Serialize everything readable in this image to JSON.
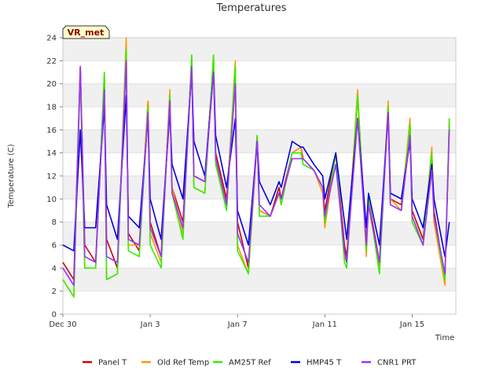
{
  "chart_data": {
    "type": "line",
    "title": "Temperatures",
    "xlabel": "Time",
    "ylabel": "Temperature (C)",
    "ylim": [
      0,
      24
    ],
    "xlim_days": [
      0,
      18
    ],
    "y_ticks": [
      0,
      2,
      4,
      6,
      8,
      10,
      12,
      14,
      16,
      18,
      20,
      22,
      24
    ],
    "x_ticks": [
      {
        "day": 0,
        "label": "Dec 30"
      },
      {
        "day": 4,
        "label": "Jan 3"
      },
      {
        "day": 8,
        "label": "Jan 7"
      },
      {
        "day": 12,
        "label": "Jan 11"
      },
      {
        "day": 16,
        "label": "Jan 15"
      }
    ],
    "x": [
      0.0,
      0.5,
      0.8,
      1.0,
      1.5,
      1.9,
      2.0,
      2.5,
      2.9,
      3.0,
      3.5,
      3.9,
      4.0,
      4.5,
      4.9,
      5.0,
      5.5,
      5.9,
      6.0,
      6.5,
      6.9,
      7.0,
      7.5,
      7.9,
      8.0,
      8.5,
      8.9,
      9.0,
      9.5,
      9.9,
      10.0,
      10.5,
      10.9,
      11.0,
      11.5,
      11.9,
      12.0,
      12.5,
      12.9,
      13.0,
      13.5,
      13.9,
      14.0,
      14.5,
      14.9,
      15.0,
      15.5,
      15.9,
      16.0,
      16.5,
      16.9,
      17.0,
      17.5,
      17.7
    ],
    "series": [
      {
        "name": "Panel T",
        "color": "#cc0000",
        "values": [
          4.5,
          3.0,
          21.5,
          6.0,
          4.5,
          20.5,
          6.5,
          4.0,
          22.5,
          7.0,
          5.5,
          18.5,
          8.0,
          5.0,
          19.0,
          11.0,
          8.0,
          22.0,
          12.0,
          11.5,
          22.0,
          14.0,
          10.0,
          21.0,
          8.0,
          4.0,
          15.5,
          9.0,
          8.5,
          11.0,
          10.0,
          14.0,
          14.5,
          13.5,
          12.5,
          11.0,
          9.0,
          14.0,
          6.0,
          5.0,
          19.0,
          6.0,
          10.0,
          4.5,
          18.0,
          10.0,
          9.5,
          16.5,
          9.0,
          6.5,
          14.0,
          9.0,
          3.0,
          16.5
        ]
      },
      {
        "name": "Old Ref Temp",
        "color": "#ff9900",
        "values": [
          3.0,
          1.5,
          21.0,
          4.0,
          4.0,
          21.0,
          3.0,
          3.5,
          24.0,
          6.0,
          6.0,
          18.5,
          7.0,
          4.5,
          19.5,
          11.0,
          7.0,
          22.5,
          11.0,
          10.5,
          22.5,
          13.5,
          9.5,
          22.0,
          6.0,
          3.5,
          15.0,
          9.0,
          8.5,
          10.5,
          9.5,
          14.0,
          14.5,
          13.0,
          12.5,
          10.5,
          7.5,
          14.0,
          5.0,
          4.5,
          19.5,
          5.0,
          9.5,
          4.0,
          18.5,
          10.0,
          9.0,
          17.0,
          8.0,
          6.0,
          14.5,
          8.0,
          2.5,
          17.0
        ]
      },
      {
        "name": "AM25T Ref",
        "color": "#33ee00",
        "values": [
          3.0,
          1.5,
          21.0,
          4.0,
          4.0,
          21.0,
          3.0,
          3.5,
          23.0,
          5.5,
          5.0,
          18.0,
          6.0,
          4.0,
          19.0,
          10.5,
          6.5,
          22.5,
          11.0,
          10.5,
          22.5,
          13.0,
          9.0,
          21.5,
          5.5,
          3.5,
          15.5,
          8.5,
          8.5,
          10.5,
          9.5,
          14.0,
          14.0,
          13.0,
          12.5,
          11.0,
          8.0,
          14.0,
          4.5,
          4.0,
          19.0,
          5.5,
          10.0,
          3.5,
          18.0,
          9.5,
          9.0,
          16.5,
          8.0,
          6.0,
          14.0,
          8.5,
          3.0,
          17.0
        ]
      },
      {
        "name": "HMP45 T",
        "color": "#0000dd",
        "values": [
          6.0,
          5.5,
          16.0,
          7.5,
          7.5,
          18.0,
          9.5,
          6.5,
          19.0,
          8.5,
          7.5,
          17.0,
          10.0,
          6.5,
          17.5,
          13.0,
          10.0,
          21.0,
          15.0,
          12.0,
          21.0,
          15.5,
          11.0,
          17.0,
          9.0,
          6.0,
          15.0,
          11.5,
          9.5,
          11.5,
          11.0,
          15.0,
          14.5,
          14.5,
          13.0,
          12.0,
          10.0,
          14.0,
          8.0,
          6.5,
          17.0,
          7.5,
          10.5,
          6.0,
          17.5,
          10.5,
          10.0,
          15.0,
          10.0,
          7.5,
          13.0,
          10.0,
          5.0,
          8.0
        ]
      },
      {
        "name": "CNR1 PRT",
        "color": "#9933ff",
        "values": [
          4.0,
          2.5,
          21.5,
          5.0,
          4.5,
          19.5,
          5.0,
          4.5,
          22.0,
          6.5,
          6.0,
          17.5,
          7.5,
          5.0,
          18.5,
          10.5,
          7.5,
          21.5,
          12.0,
          11.5,
          21.0,
          13.5,
          9.5,
          20.0,
          7.0,
          4.5,
          15.0,
          9.5,
          8.5,
          10.5,
          10.0,
          13.5,
          13.5,
          13.5,
          12.5,
          11.0,
          8.5,
          13.0,
          5.5,
          4.5,
          17.0,
          6.0,
          9.5,
          4.5,
          17.5,
          9.5,
          9.0,
          15.5,
          8.5,
          6.0,
          12.5,
          8.5,
          3.5,
          16.0
        ]
      }
    ]
  },
  "badge": {
    "label": "VR_met"
  }
}
